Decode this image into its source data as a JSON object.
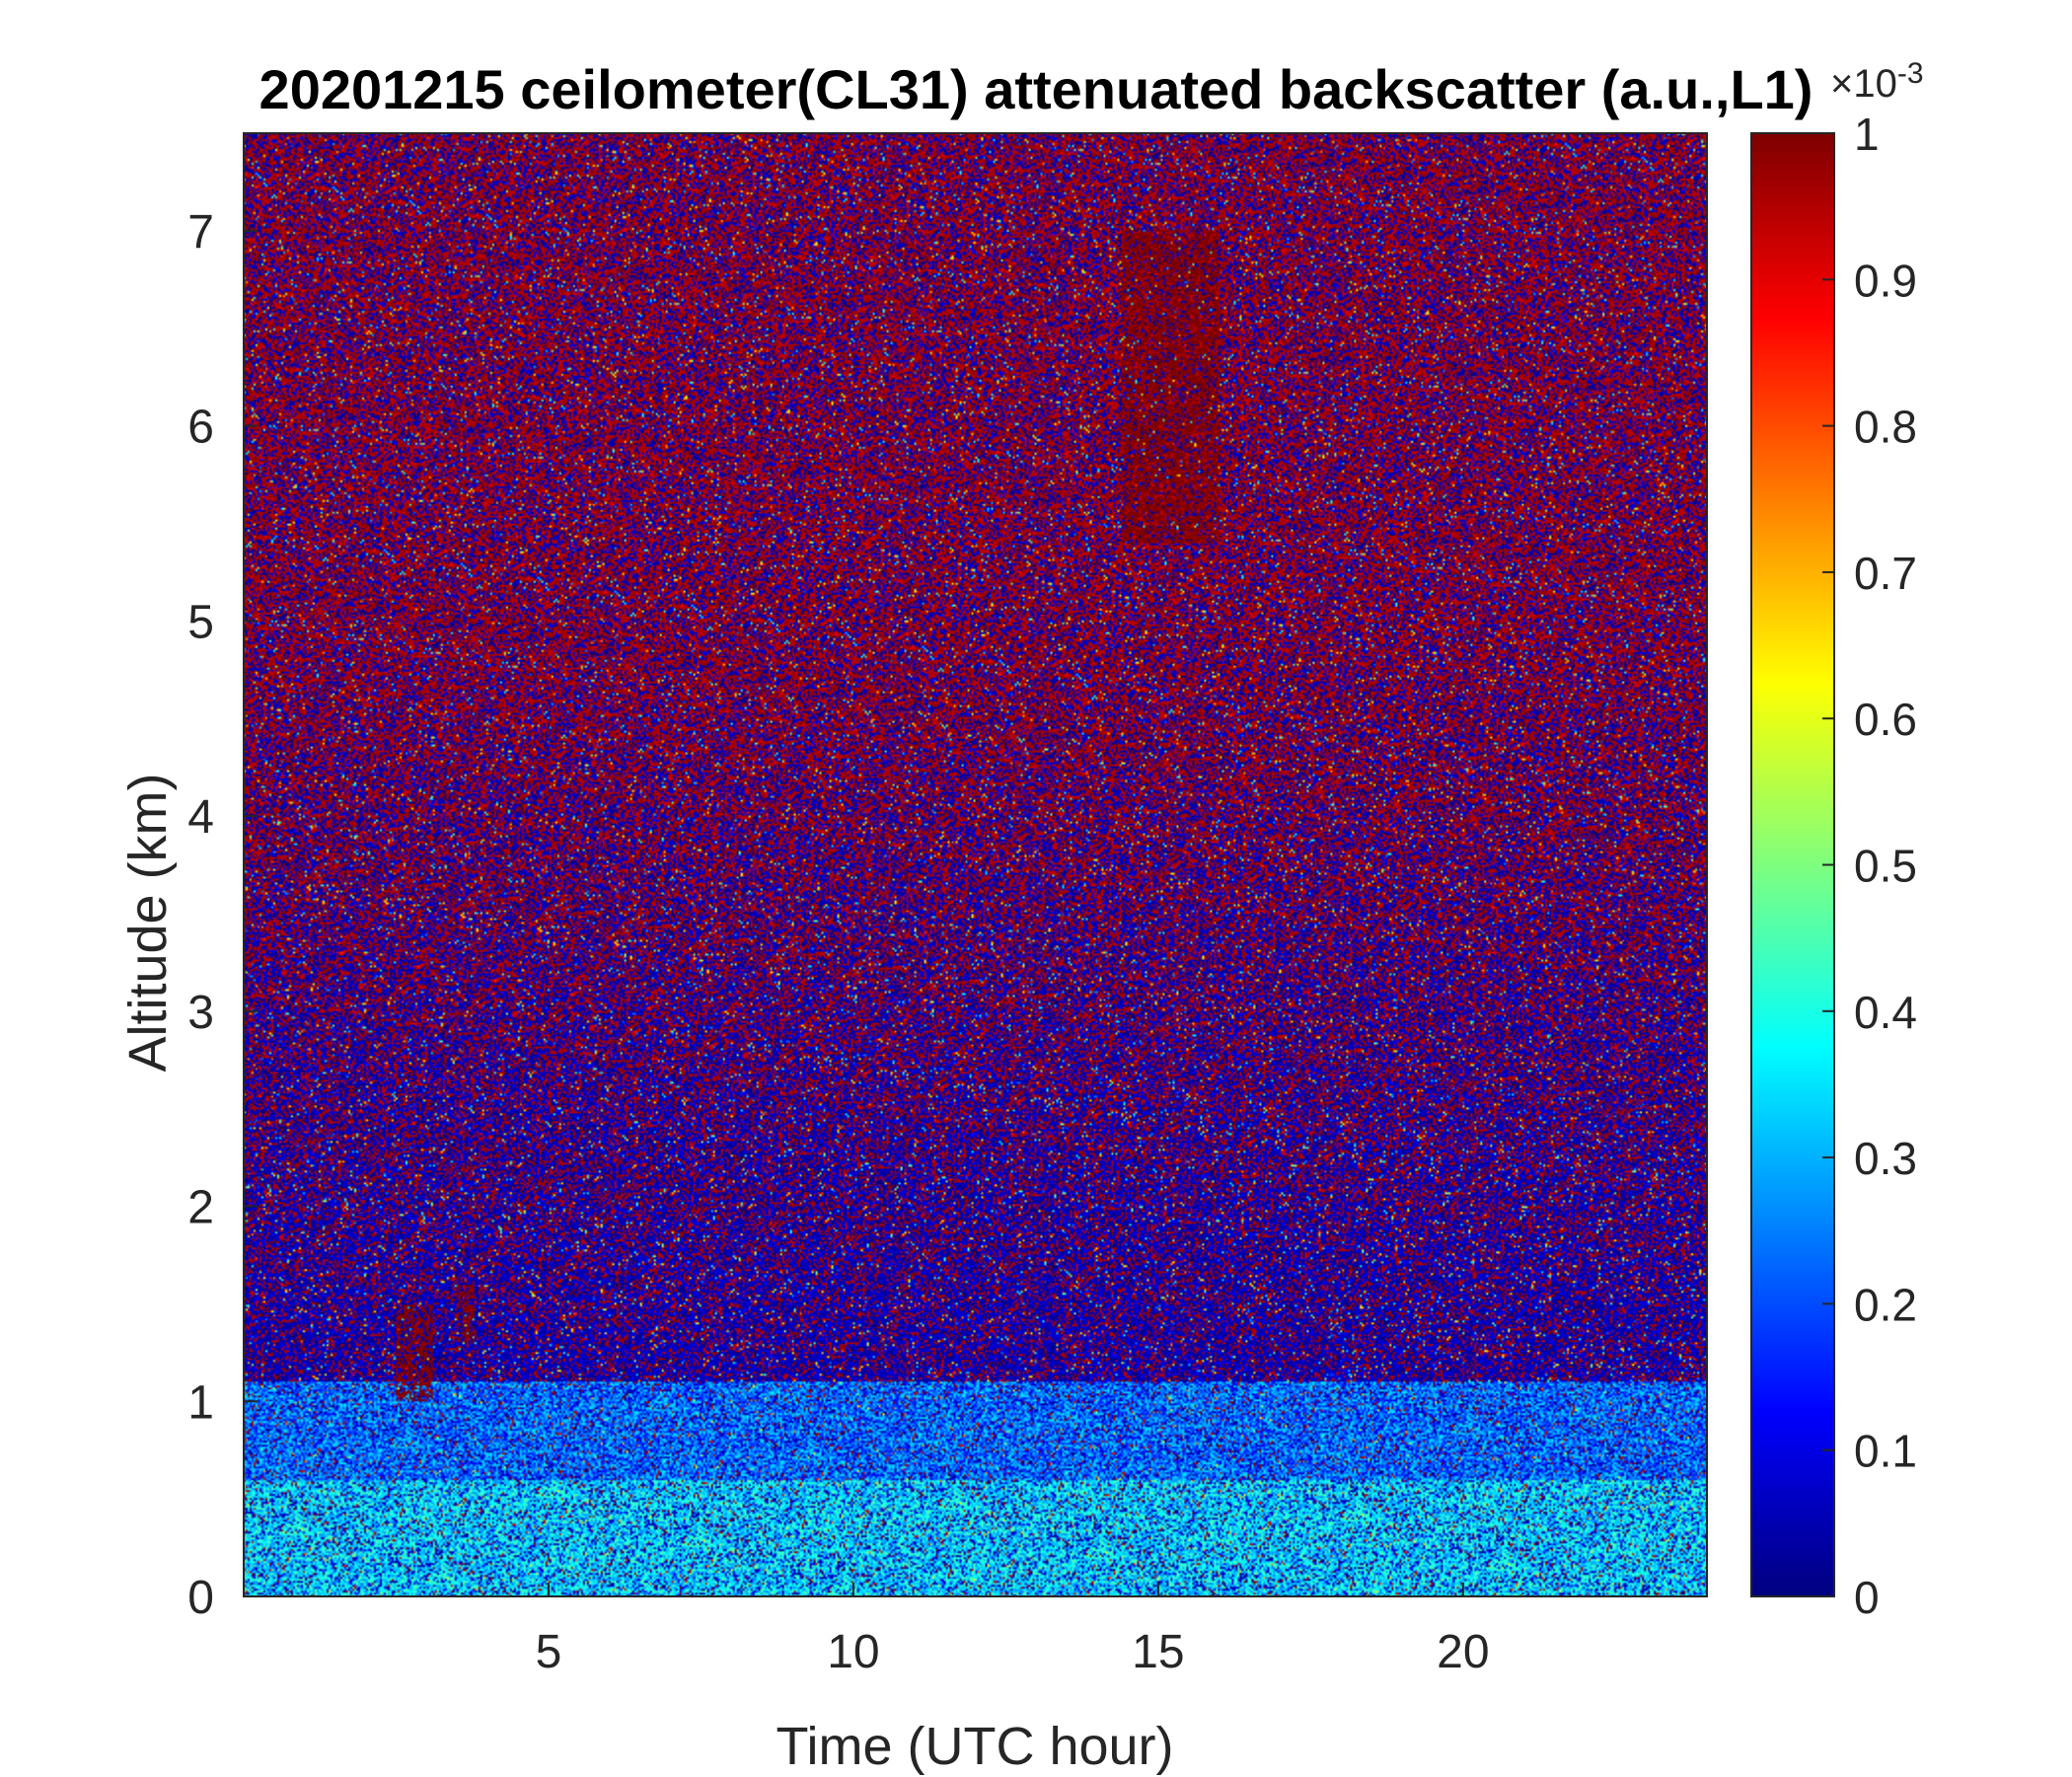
{
  "chart_data": {
    "type": "heatmap",
    "title": "20201215 ceilometer(CL31) attenuated backscatter (a.u.,L1)",
    "xlabel": "Time (UTC hour)",
    "ylabel": "Altitude (km)",
    "xlim": [
      0,
      24
    ],
    "ylim": [
      0,
      7.5
    ],
    "x_ticks": [
      5,
      10,
      15,
      20
    ],
    "y_ticks": [
      0,
      1,
      2,
      3,
      4,
      5,
      6,
      7
    ],
    "colorbar": {
      "colormap": "jet",
      "clim": [
        0,
        1
      ],
      "ticks": [
        0,
        0.1,
        0.2,
        0.3,
        0.4,
        0.5,
        0.6,
        0.7,
        0.8,
        0.9,
        1
      ],
      "tick_labels": [
        "0",
        "0.1",
        "0.2",
        "0.3",
        "0.4",
        "0.5",
        "0.6",
        "0.7",
        "0.8",
        "0.9",
        "1"
      ],
      "exponent_base": "×10",
      "exponent_power": "-3"
    },
    "layers": [
      {
        "description": "boundary layer aerosol",
        "altitude_km": [
          0.0,
          0.6
        ],
        "value": 0.35
      },
      {
        "description": "elevated aerosol layer",
        "altitude_km": [
          0.6,
          1.1
        ],
        "value": 0.25
      }
    ],
    "features": [
      {
        "description": "low cloud",
        "time_utc": [
          2.5,
          3.1
        ],
        "altitude_km": [
          1.0,
          1.5
        ],
        "value": 1.0
      },
      {
        "description": "low cloud",
        "time_utc": [
          3.5,
          3.8
        ],
        "altitude_km": [
          1.3,
          1.6
        ],
        "value": 1.0
      },
      {
        "description": "mid-level cloud",
        "time_utc": [
          14.4,
          16.0
        ],
        "altitude_km": [
          5.4,
          7.0
        ],
        "value": 1.0
      }
    ],
    "colors": {
      "low": "#00008f",
      "high": "#800000"
    }
  }
}
